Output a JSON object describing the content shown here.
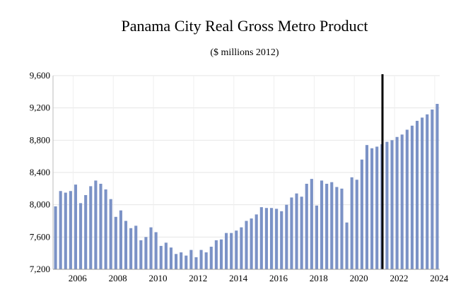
{
  "chart_data": {
    "type": "bar",
    "title": "Panama City Real Gross Metro Product",
    "subtitle": "($ millions 2012)",
    "xlabel": "",
    "ylabel": "",
    "ylim": [
      7200,
      9600
    ],
    "yticks": [
      7200,
      7600,
      8000,
      8400,
      8800,
      9200,
      9600
    ],
    "ytick_labels": [
      "7,200",
      "7,600",
      "8,000",
      "8,400",
      "8,800",
      "9,200",
      "9,600"
    ],
    "xtick_labels": [
      "2006",
      "2008",
      "2010",
      "2012",
      "2014",
      "2016",
      "2018",
      "2020",
      "2022",
      "2024"
    ],
    "start_quarter": "2005Q1",
    "frequency": "quarterly",
    "forecast_marker_quarter": "2021Q2",
    "grid": true,
    "bar_color": "#7b92c6",
    "marker_color": "#000000",
    "values": [
      7980,
      8170,
      8150,
      8170,
      8250,
      8020,
      8120,
      8230,
      8300,
      8260,
      8190,
      8070,
      7850,
      7930,
      7800,
      7710,
      7740,
      7560,
      7600,
      7720,
      7660,
      7490,
      7530,
      7470,
      7390,
      7410,
      7370,
      7440,
      7350,
      7440,
      7410,
      7480,
      7560,
      7570,
      7650,
      7650,
      7680,
      7720,
      7800,
      7830,
      7880,
      7970,
      7960,
      7960,
      7950,
      7920,
      8000,
      8090,
      8140,
      8100,
      8260,
      8320,
      7990,
      8300,
      8260,
      8280,
      8220,
      8200,
      7780,
      8340,
      8310,
      8560,
      8740,
      8700,
      8720,
      8750,
      8780,
      8800,
      8840,
      8870,
      8930,
      8980,
      9040,
      9080,
      9120,
      9180,
      9250
    ]
  }
}
